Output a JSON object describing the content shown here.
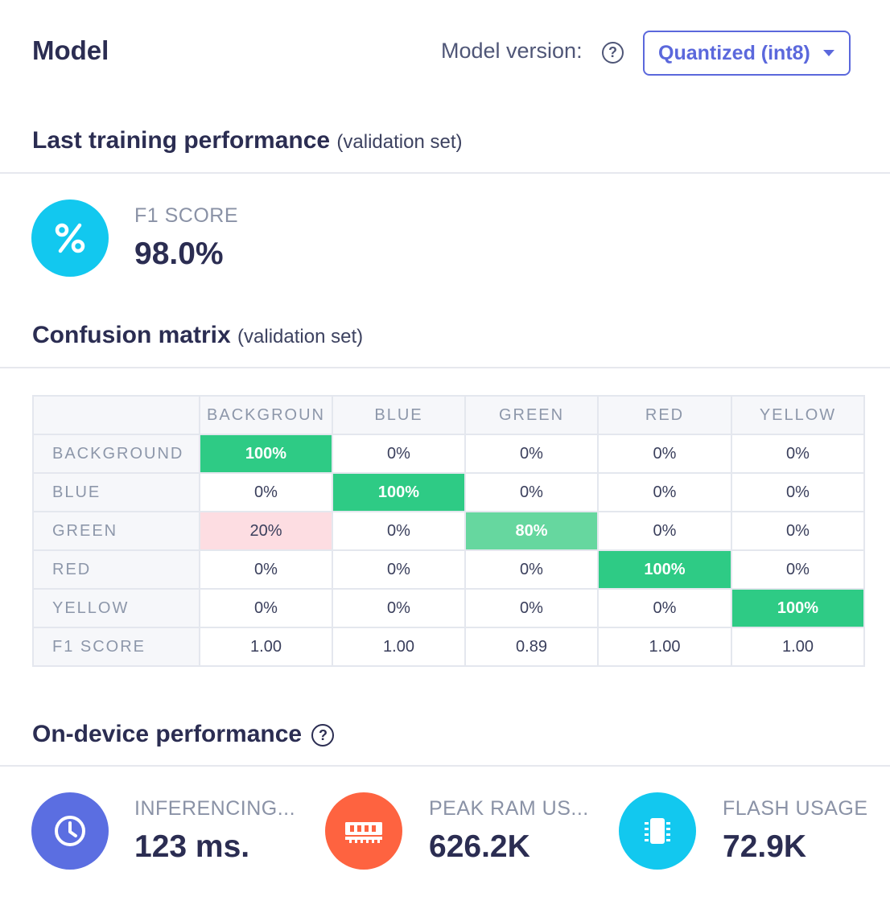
{
  "header": {
    "title": "Model",
    "version_label": "Model version:",
    "version_selected": "Quantized (int8)"
  },
  "training": {
    "heading": "Last training performance",
    "heading_sub": "(validation set)",
    "f1_label": "F1 SCORE",
    "f1_value": "98.0%",
    "icon": "percent-icon"
  },
  "confusion": {
    "heading": "Confusion matrix",
    "heading_sub": "(validation set)",
    "columns": [
      "BACKGROUN",
      "BLUE",
      "GREEN",
      "RED",
      "YELLOW"
    ],
    "rows": [
      {
        "label": "BACKGROUND",
        "cells": [
          "100%",
          "0%",
          "0%",
          "0%",
          "0%"
        ]
      },
      {
        "label": "BLUE",
        "cells": [
          "0%",
          "100%",
          "0%",
          "0%",
          "0%"
        ]
      },
      {
        "label": "GREEN",
        "cells": [
          "20%",
          "0%",
          "80%",
          "0%",
          "0%"
        ]
      },
      {
        "label": "RED",
        "cells": [
          "0%",
          "0%",
          "0%",
          "100%",
          "0%"
        ]
      },
      {
        "label": "YELLOW",
        "cells": [
          "0%",
          "0%",
          "0%",
          "0%",
          "100%"
        ]
      }
    ],
    "f1_row": {
      "label": "F1 SCORE",
      "cells": [
        "1.00",
        "1.00",
        "0.89",
        "1.00",
        "1.00"
      ]
    }
  },
  "device": {
    "heading": "On-device performance",
    "metrics": [
      {
        "label": "INFERENCING...",
        "value": "123 ms.",
        "icon": "clock-icon",
        "color": "#5b6ee1"
      },
      {
        "label": "PEAK RAM US...",
        "value": "626.2K",
        "icon": "ram-icon",
        "color": "#fe6340"
      },
      {
        "label": "FLASH USAGE",
        "value": "72.9K",
        "icon": "chip-icon",
        "color": "#12c8ef"
      }
    ]
  },
  "colors": {
    "accent": "#5b68dc",
    "cyan": "#12c8ef",
    "green_high": "#2ecb85",
    "green_mid": "#66d79f",
    "error_pink": "#fddde2"
  }
}
